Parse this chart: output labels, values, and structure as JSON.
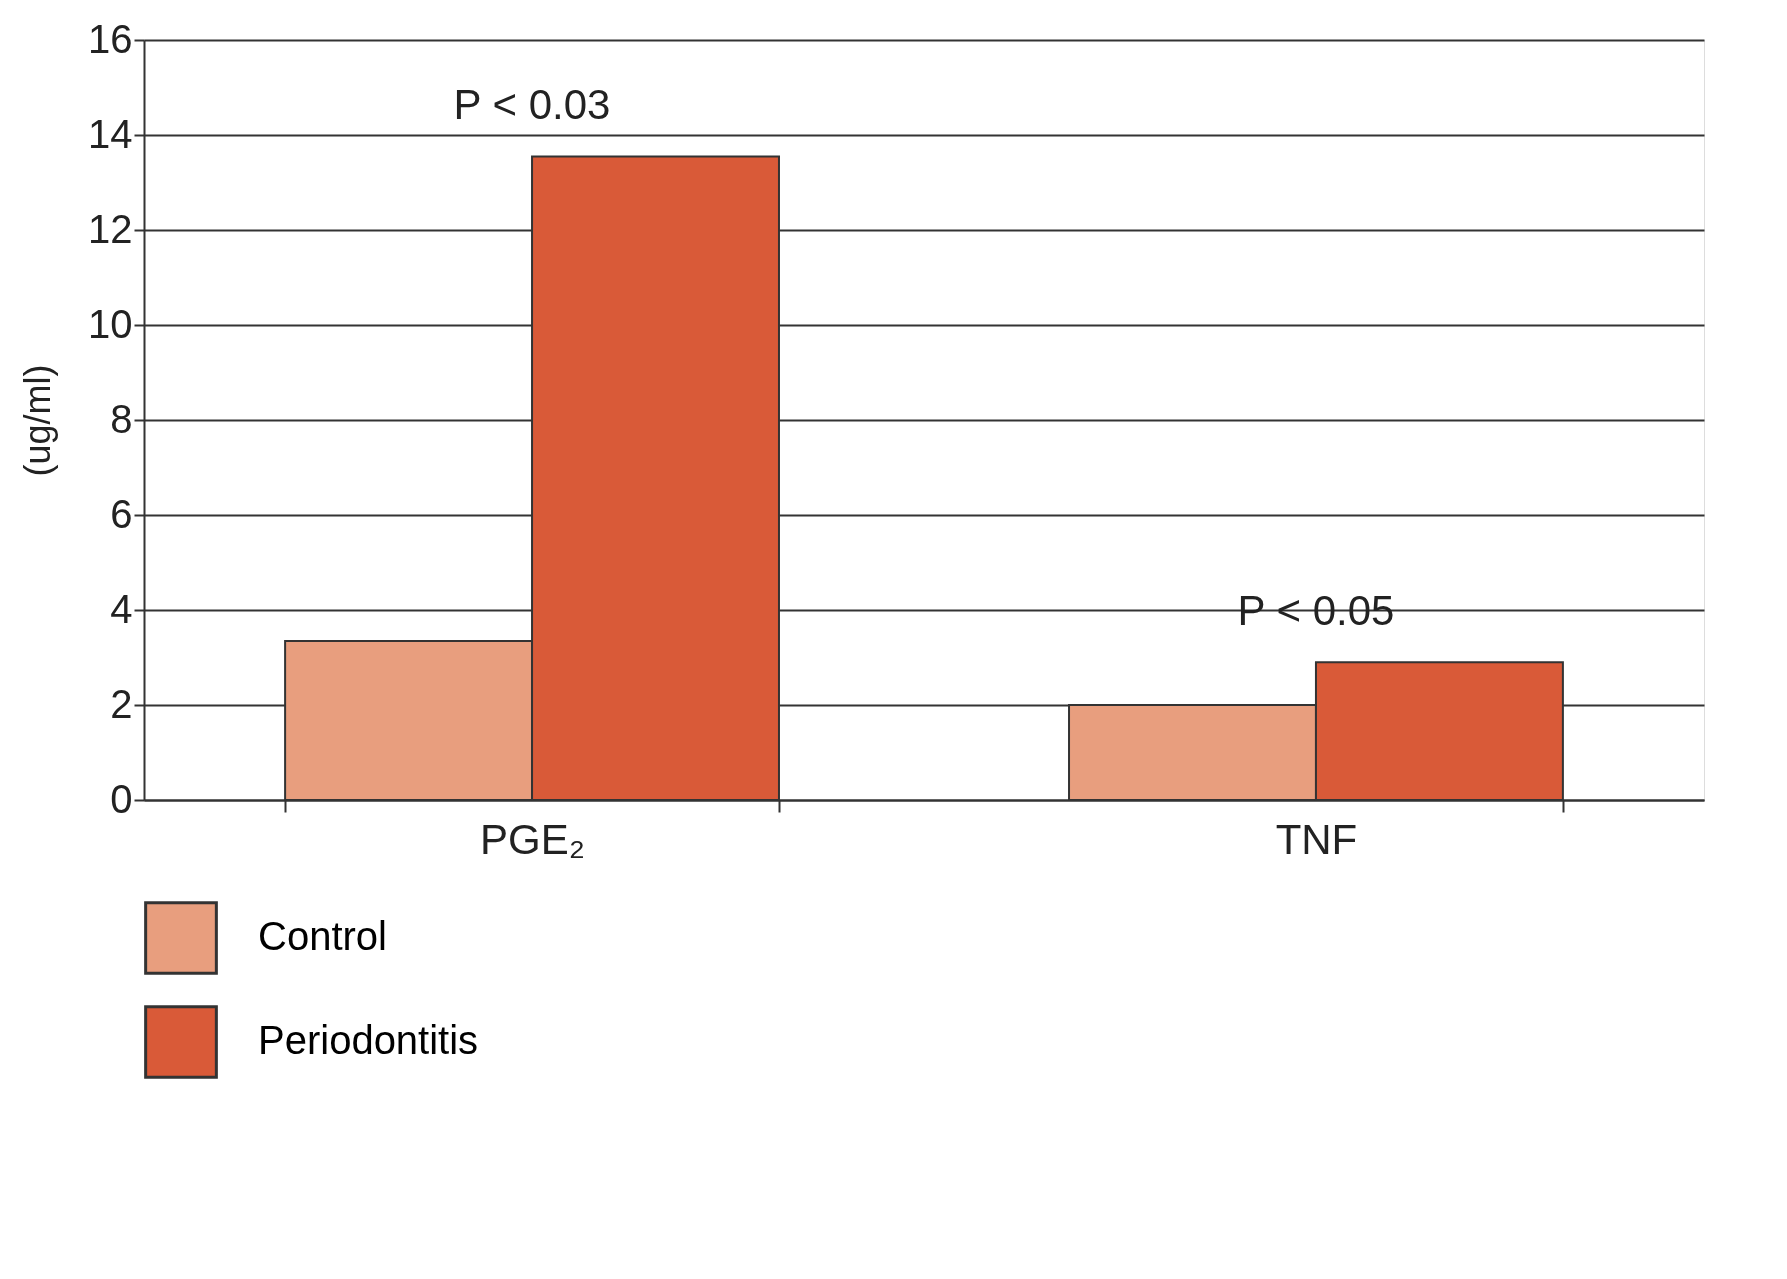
{
  "chart_data": {
    "type": "bar",
    "ylabel": "(ug/ml)",
    "categories": [
      "PGE₂",
      "TNF"
    ],
    "series": [
      {
        "name": "Control",
        "color": "#e89e7e",
        "values": [
          3.35,
          2.0
        ]
      },
      {
        "name": "Periodontitis",
        "color": "#d95a38",
        "values": [
          13.55,
          2.9
        ]
      }
    ],
    "ylim": [
      0,
      16
    ],
    "yticks": [
      0,
      2,
      4,
      6,
      8,
      10,
      12,
      14,
      16
    ],
    "grid": "y",
    "legend": "bottom",
    "annotations": [
      "P < 0.03",
      "P < 0.05"
    ]
  }
}
